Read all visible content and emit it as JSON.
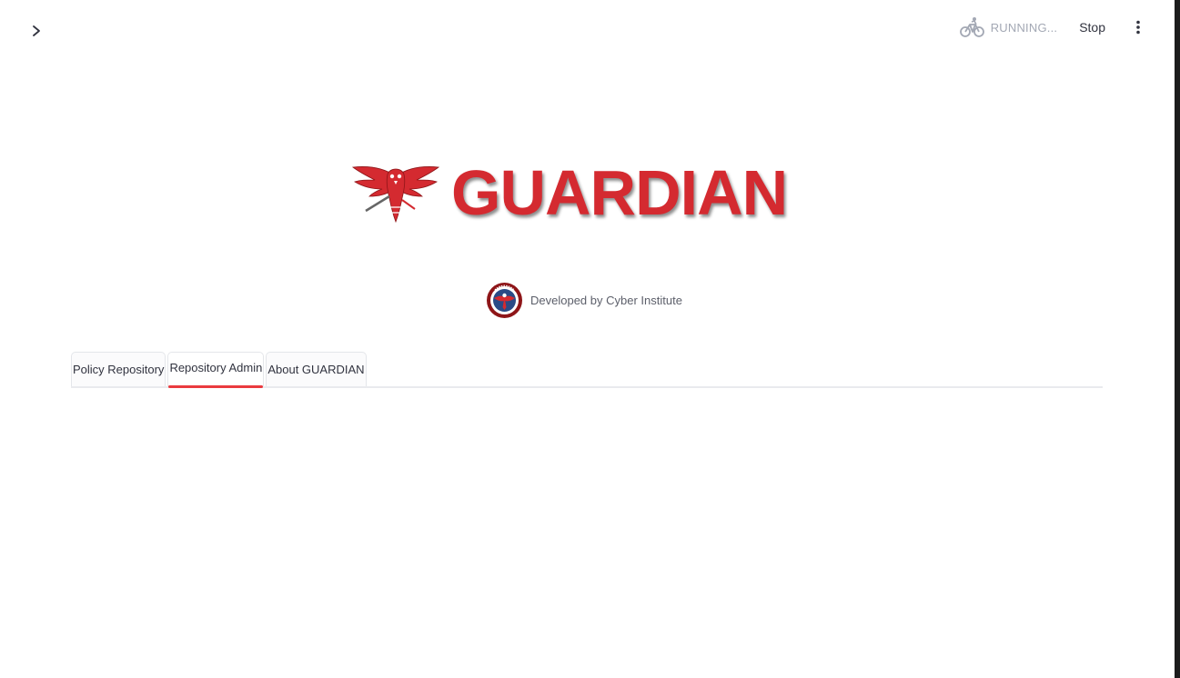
{
  "header": {
    "status_text": "RUNNING...",
    "status_icon": "bicycle-icon",
    "stop_label": "Stop",
    "menu_icon": "vertical-dots-icon",
    "sidebar_toggle_icon": "chevron-right-icon"
  },
  "brand": {
    "logo_text": "GUARDIAN",
    "logo_icon": "eagle-icon",
    "color": "#d42a30"
  },
  "developer": {
    "text": "Developed by Cyber Institute",
    "badge_icon": "cyber-institute-seal-icon"
  },
  "tabs": [
    {
      "label": "Policy Repository",
      "active": false
    },
    {
      "label": "Repository Admin",
      "active": true
    },
    {
      "label": "About GUARDIAN",
      "active": false
    }
  ],
  "colors": {
    "accent": "#ea3a3f",
    "status": "#a3a8b4",
    "text": "#31333f"
  }
}
